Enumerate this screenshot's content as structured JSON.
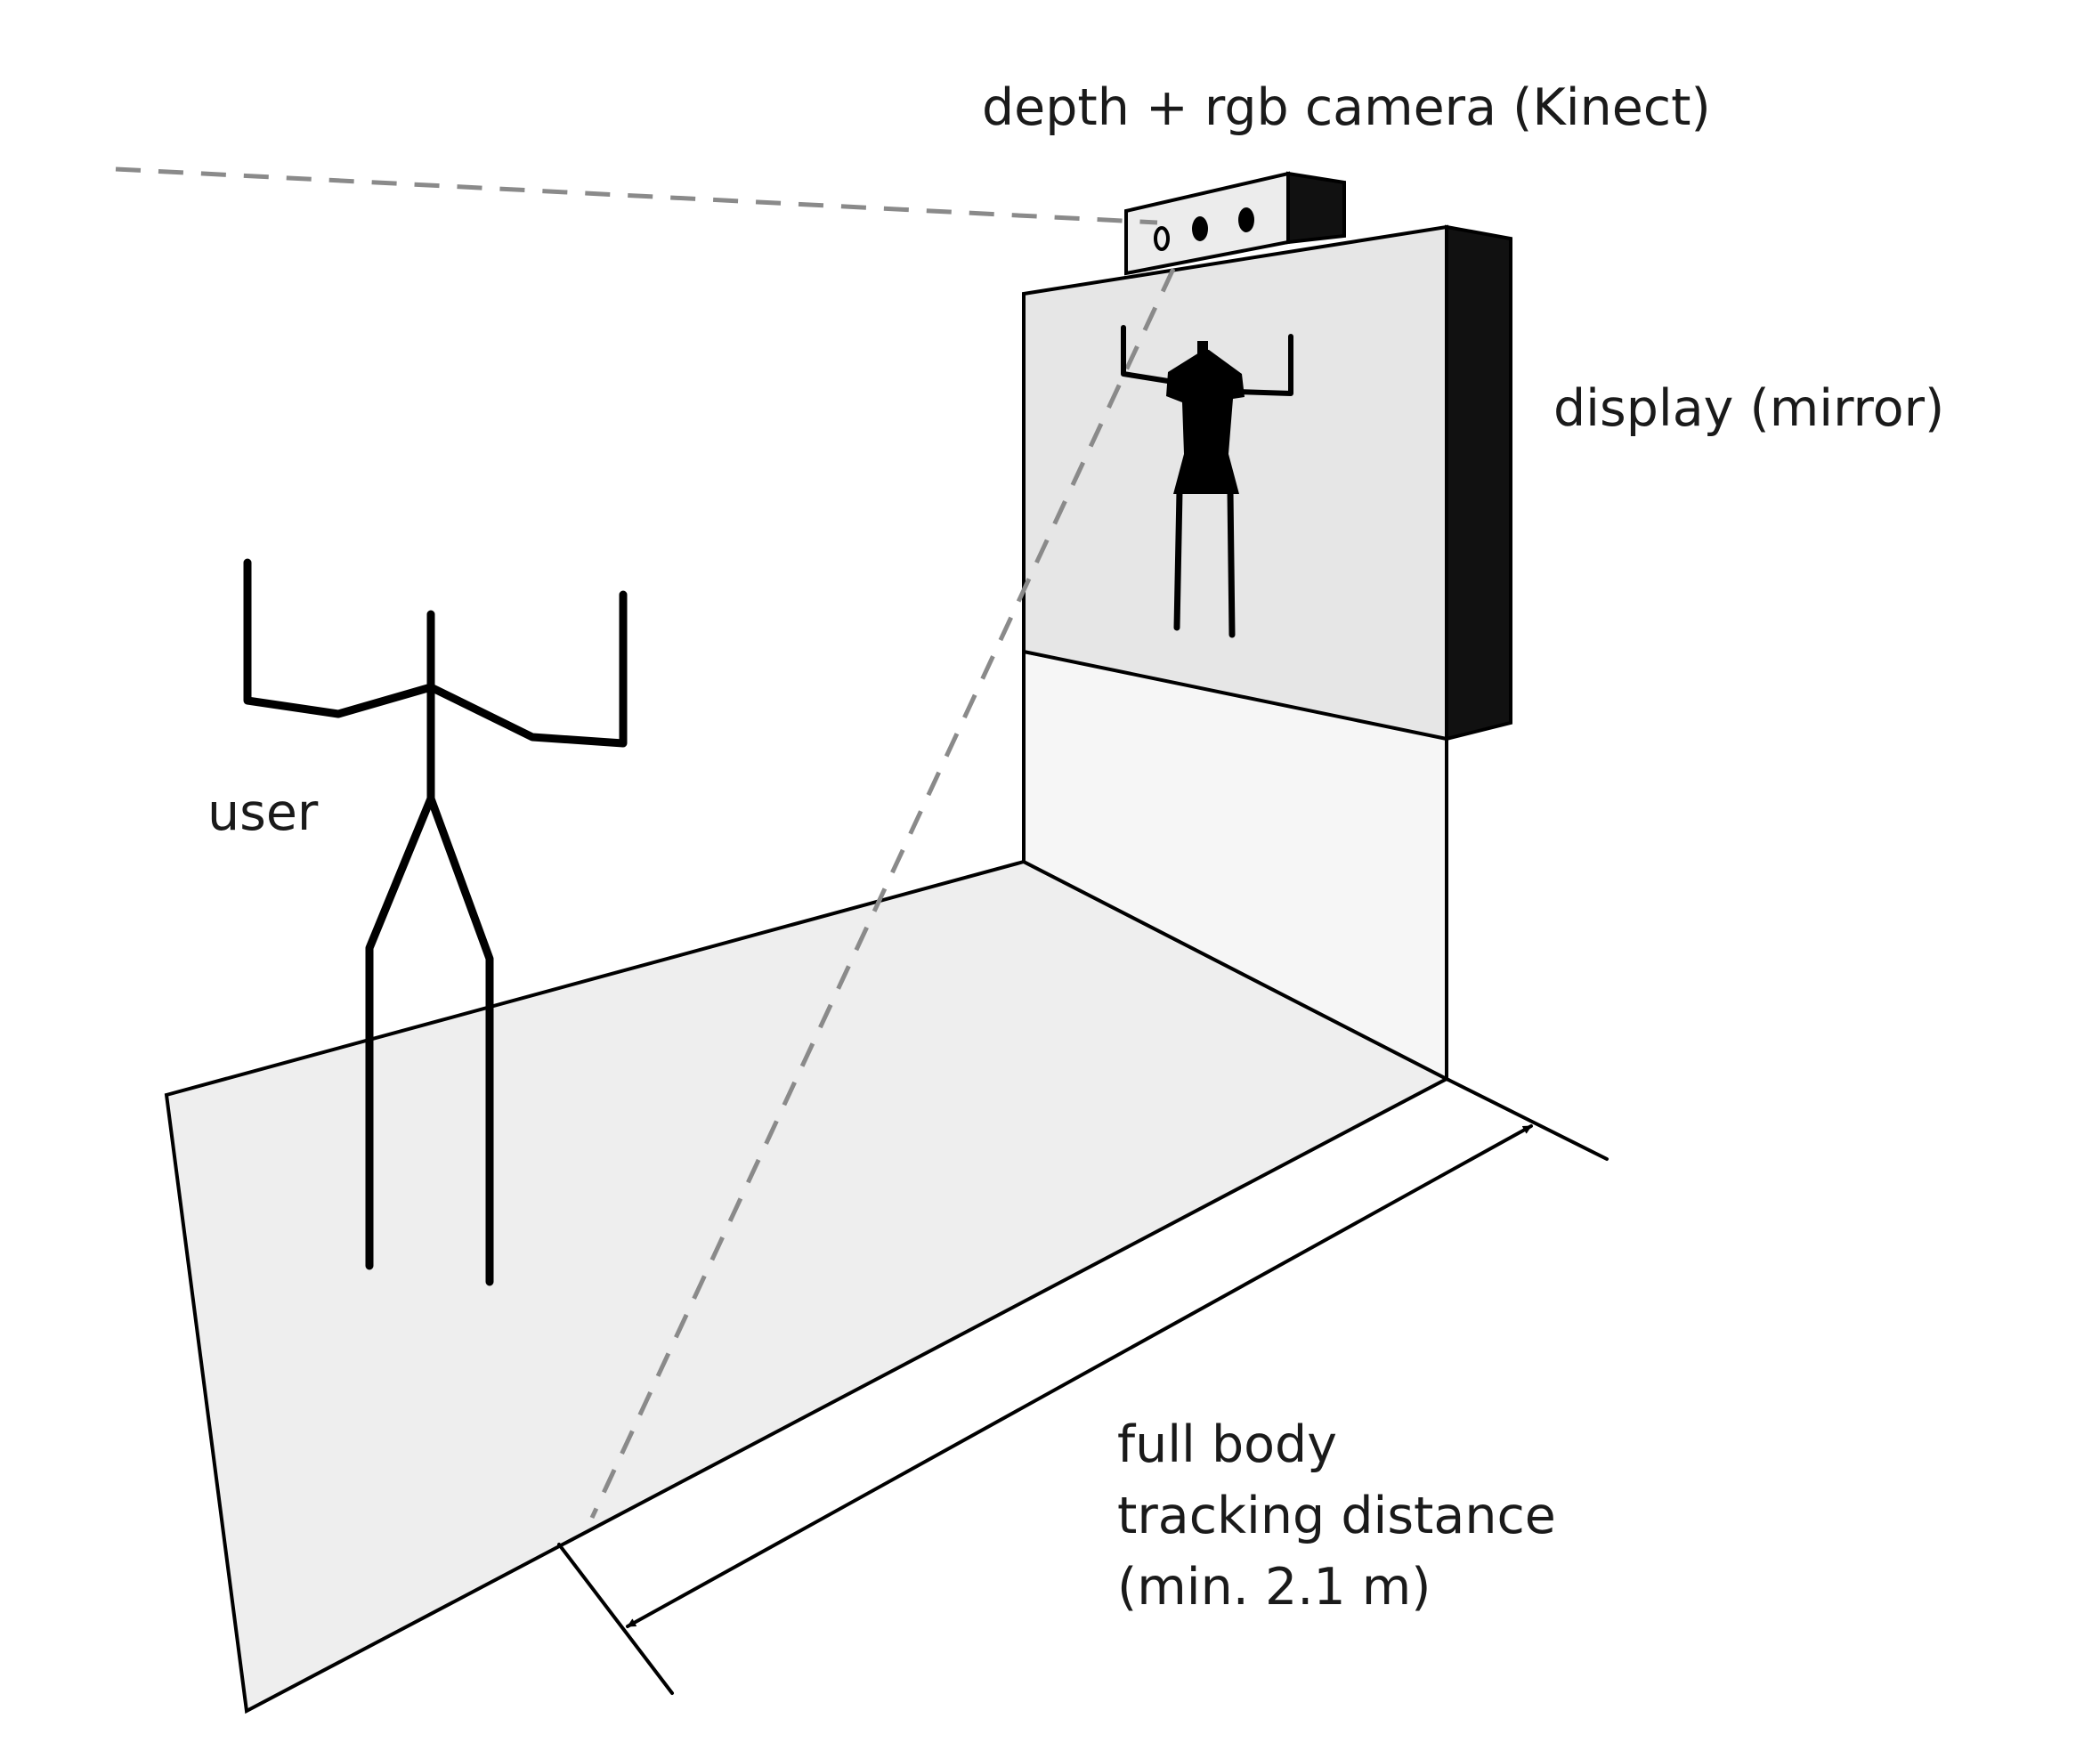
{
  "labels": {
    "camera": "depth + rgb camera (Kinect)",
    "display": "display (mirror)",
    "user": "user",
    "distance_line1": "full body",
    "distance_line2": "tracking distance",
    "distance_line3": "(min. 2.1 m)"
  },
  "colors": {
    "floor": "#eeeeee",
    "screen": "#e6e6e6",
    "wall": "#f6f6f6",
    "frame": "#000000",
    "sight_line": "#8a8a8a"
  }
}
